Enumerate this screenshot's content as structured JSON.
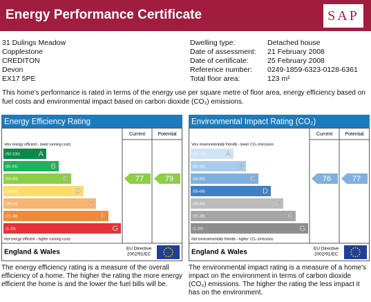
{
  "header": {
    "title": "Energy Performance Certificate",
    "logo": "SAP"
  },
  "address": [
    "31 Dulings Meadow",
    "Copplestone",
    "CREDITON",
    "Devon",
    "EX17 5PE"
  ],
  "details": [
    {
      "label": "Dwelling type:",
      "value": "Detached house"
    },
    {
      "label": "Date of assessment:",
      "value": "21 February 2008"
    },
    {
      "label": "Date of certificate:",
      "value": "25 February 2008"
    },
    {
      "label": "Reference number:",
      "value": "0249-1859-6323-0128-6361"
    },
    {
      "label": "Total floor area:",
      "value": "123 m²"
    }
  ],
  "intro": "This home's performance is rated in terms of the energy use per square metre of floor area, energy efficiency based on fuel costs and environmental impact based on carbon dioxide (CO₂) emissions.",
  "panels": [
    {
      "title": "Energy Efficiency Rating",
      "columns": [
        "Current",
        "Potential"
      ],
      "top_note": "Very energy efficient - lower running costs",
      "bottom_note": "Not energy efficient - higher running costs",
      "bands": [
        {
          "range": "(92-100)",
          "letter": "A"
        },
        {
          "range": "(81-91)",
          "letter": "B"
        },
        {
          "range": "(69-80)",
          "letter": "C"
        },
        {
          "range": "(55-68)",
          "letter": "D"
        },
        {
          "range": "(39-54)",
          "letter": "E"
        },
        {
          "range": "(21-38)",
          "letter": "F"
        },
        {
          "range": "(1-20)",
          "letter": "G"
        }
      ],
      "current": 77,
      "potential": 79,
      "region": "England & Wales",
      "directive": [
        "EU Directive",
        "2002/91/EC"
      ],
      "description": "The energy efficiency rating is a measure of the overall efficiency of a home. The higher the rating the more energy efficient the home is and the lower the fuel bills will be."
    },
    {
      "title": "Environmental Impact Rating (CO₂)",
      "columns": [
        "Current",
        "Potential"
      ],
      "top_note": "Very environmentally friendly - lower CO₂ emissions",
      "bottom_note": "Not environmentally friendly - higher CO₂ emissions",
      "bands": [
        {
          "range": "(92-100)",
          "letter": "A"
        },
        {
          "range": "(81-91)",
          "letter": "B"
        },
        {
          "range": "(69-80)",
          "letter": "C"
        },
        {
          "range": "(55-68)",
          "letter": "D"
        },
        {
          "range": "(39-54)",
          "letter": "E"
        },
        {
          "range": "(21-38)",
          "letter": "F"
        },
        {
          "range": "(1-20)",
          "letter": "G"
        }
      ],
      "current": 76,
      "potential": 77,
      "region": "England & Wales",
      "directive": [
        "EU Directive",
        "2002/91/EC"
      ],
      "description": "The environmental impact rating is a measure of a home's impact on the environment in terms of carbon dioxide (CO₂) emissions. The higher the rating the less impact it has on the environment."
    }
  ]
}
